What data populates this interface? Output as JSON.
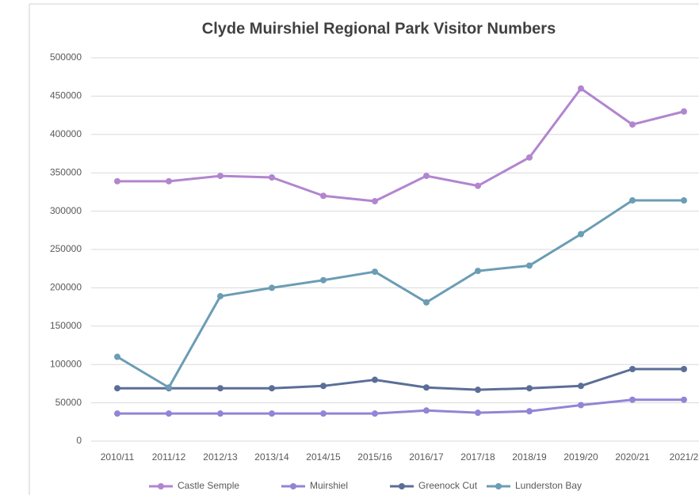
{
  "chart_data": {
    "type": "line",
    "title": "Clyde Muirshiel Regional Park Visitor Numbers",
    "categories": [
      "2010/11",
      "2011/12",
      "2012/13",
      "2013/14",
      "2014/15",
      "2015/16",
      "2016/17",
      "2017/18",
      "2018/19",
      "2019/20",
      "2020/21",
      "2021/2"
    ],
    "series": [
      {
        "name": "Castle Semple",
        "color": "#b285cf",
        "values": [
          339000,
          339000,
          346000,
          344000,
          320000,
          313000,
          346000,
          333000,
          370000,
          460000,
          413000,
          430000
        ]
      },
      {
        "name": "Muirshiel",
        "color": "#9384d6",
        "values": [
          36000,
          36000,
          36000,
          36000,
          36000,
          36000,
          40000,
          37000,
          39000,
          47000,
          54000,
          54000
        ]
      },
      {
        "name": "Greenock Cut",
        "color": "#5b6e98",
        "values": [
          69000,
          69000,
          69000,
          69000,
          72000,
          80000,
          70000,
          67000,
          69000,
          72000,
          94000,
          94000
        ]
      },
      {
        "name": "Lunderston Bay",
        "color": "#6b9db4",
        "values": [
          110000,
          70000,
          189000,
          200000,
          210000,
          221000,
          181000,
          222000,
          229000,
          270000,
          314000,
          314000
        ]
      }
    ],
    "ylim": [
      0,
      500000
    ],
    "yticks": [
      0,
      50000,
      100000,
      150000,
      200000,
      250000,
      300000,
      350000,
      400000,
      450000,
      500000
    ],
    "grid": true,
    "legend": "bottom"
  }
}
